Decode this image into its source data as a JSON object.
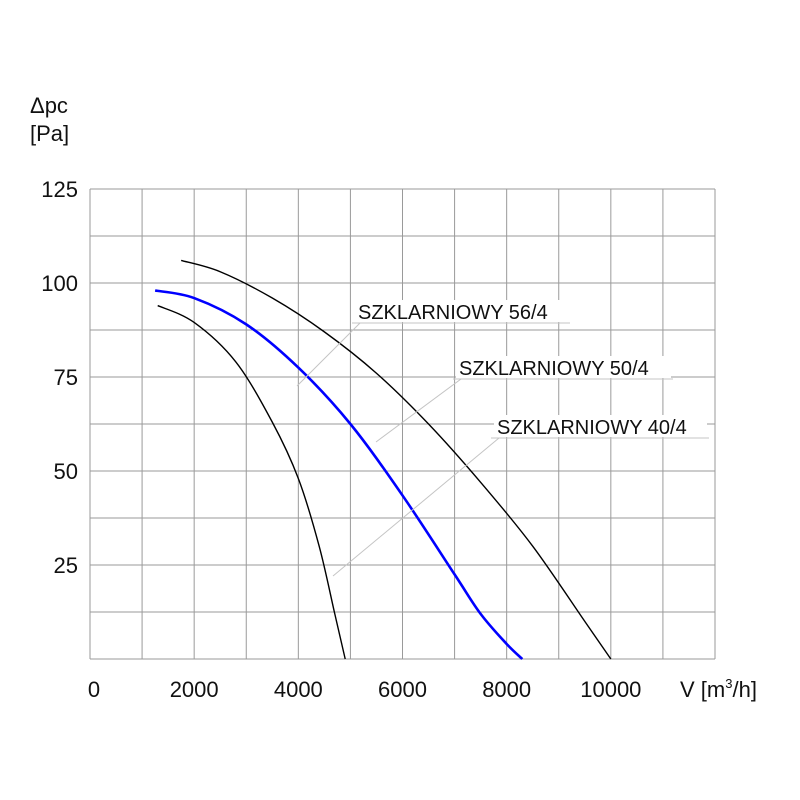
{
  "chart_data": {
    "type": "line",
    "ylabel_line1": "Δpc",
    "ylabel_line2": "[Pa]",
    "xlabel_prefix": "V [m",
    "xlabel_sup": "3",
    "xlabel_suffix": "/h]",
    "xlim": [
      0,
      12000
    ],
    "ylim": [
      0,
      125
    ],
    "x_ticks": [
      0,
      2000,
      4000,
      6000,
      8000,
      10000
    ],
    "x_tick_labels": [
      "0",
      "2000",
      "4000",
      "6000",
      "8000",
      "10000"
    ],
    "y_ticks": [
      25,
      50,
      75,
      100,
      125
    ],
    "y_tick_labels": [
      "25",
      "50",
      "75",
      "100",
      "125"
    ],
    "grid": true,
    "series": [
      {
        "name": "SZKLARNIOWY 56/4",
        "color": "#000000",
        "x": [
          1750,
          2500,
          3500,
          4500,
          5500,
          6500,
          7500,
          8500,
          9500,
          10000
        ],
        "y": [
          106,
          103,
          96,
          87,
          76,
          62.5,
          47,
          30,
          10,
          0
        ]
      },
      {
        "name": "SZKLARNIOWY 50/4",
        "color": "#0000ff",
        "x": [
          1250,
          2000,
          3000,
          4000,
          5000,
          6000,
          7000,
          7500,
          8000,
          8300
        ],
        "y": [
          98,
          96,
          89,
          77.5,
          62.5,
          43.5,
          22.5,
          12,
          4,
          0
        ]
      },
      {
        "name": "SZKLARNIOWY 40/4",
        "color": "#000000",
        "x": [
          1300,
          2000,
          2800,
          3500,
          4000,
          4400,
          4700,
          4900
        ],
        "y": [
          94,
          89.5,
          79,
          63,
          48,
          30,
          12,
          0
        ]
      }
    ],
    "annotations": [
      {
        "text": "SZKLARNIOWY 56/4"
      },
      {
        "text": "SZKLARNIOWY 50/4"
      },
      {
        "text": "SZKLARNIOWY 40/4"
      }
    ]
  }
}
